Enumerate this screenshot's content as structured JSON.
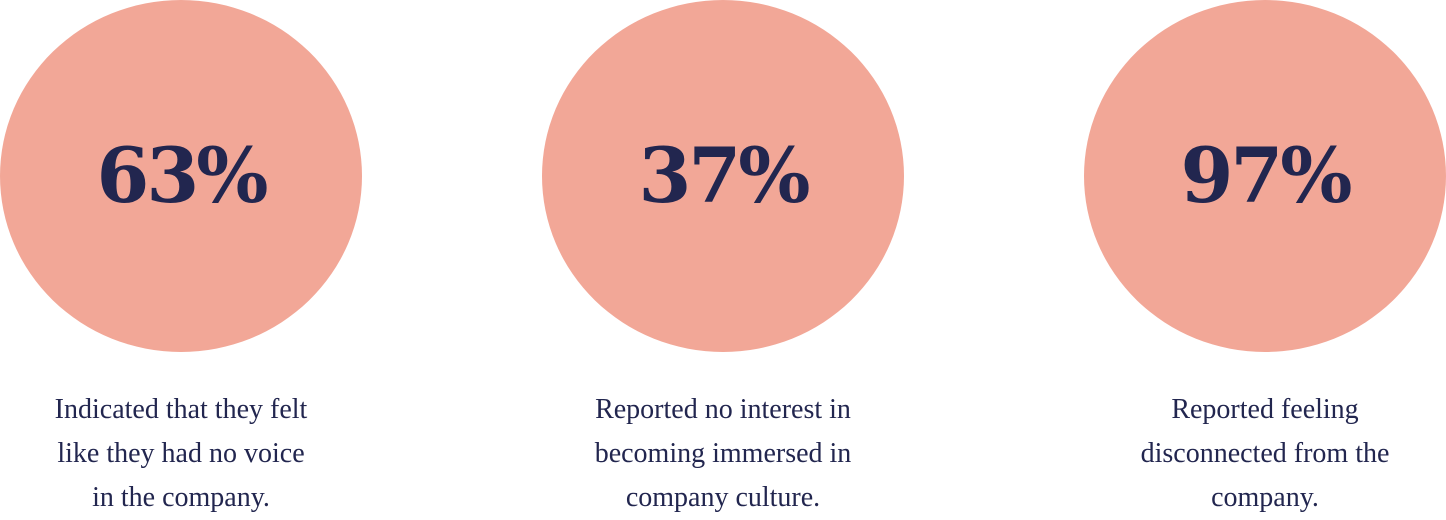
{
  "colors": {
    "circle": "#f2a797",
    "number": "#22264f",
    "caption": "#22264f"
  },
  "stats": [
    {
      "value": "63%",
      "caption_lines": [
        "Indicated that they felt",
        "like they had no voice",
        "in the company."
      ]
    },
    {
      "value": "37%",
      "caption_lines": [
        "Reported no interest in",
        "becoming immersed in",
        "company culture."
      ]
    },
    {
      "value": "97%",
      "caption_lines": [
        "Reported feeling",
        "disconnected from the",
        "company."
      ]
    }
  ]
}
